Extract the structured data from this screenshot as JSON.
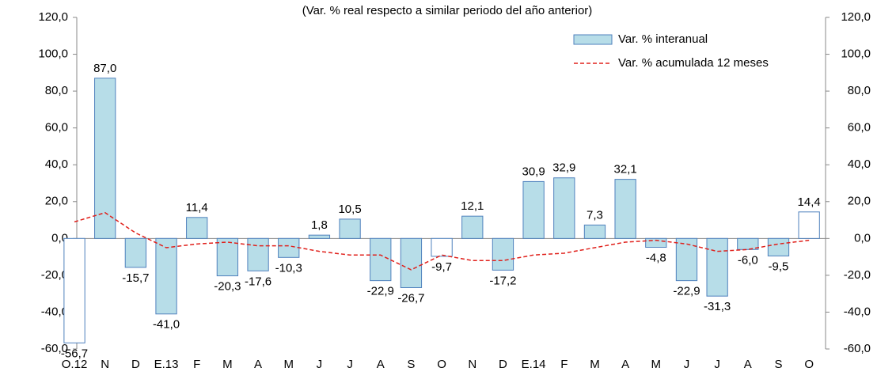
{
  "chart_data": {
    "type": "bar",
    "subtitle": "(Var. % real respecto a similar periodo del año anterior)",
    "categories": [
      "O.12",
      "N",
      "D",
      "E.13",
      "F",
      "M",
      "A",
      "M",
      "J",
      "J",
      "A",
      "S",
      "O",
      "N",
      "D",
      "E.14",
      "F",
      "M",
      "A",
      "M",
      "J",
      "J",
      "A",
      "S",
      "O"
    ],
    "series": [
      {
        "name": "Var. % interanual",
        "type": "bar",
        "color": "#b7dde8",
        "edge_color": "#4f81bd",
        "bar_colors": [
          "#ffffff",
          "#b7dde8",
          "#b7dde8",
          "#b7dde8",
          "#b7dde8",
          "#b7dde8",
          "#b7dde8",
          "#b7dde8",
          "#b7dde8",
          "#b7dde8",
          "#b7dde8",
          "#b7dde8",
          "#ffffff",
          "#b7dde8",
          "#b7dde8",
          "#b7dde8",
          "#b7dde8",
          "#b7dde8",
          "#b7dde8",
          "#b7dde8",
          "#b7dde8",
          "#b7dde8",
          "#b7dde8",
          "#b7dde8",
          "#ffffff"
        ],
        "values": [
          -56.7,
          87.0,
          -15.7,
          -41.0,
          11.4,
          -20.3,
          -17.6,
          -10.3,
          1.8,
          10.5,
          -22.9,
          -26.7,
          -9.7,
          12.1,
          -17.2,
          30.9,
          32.9,
          7.3,
          32.1,
          -4.8,
          -22.9,
          -31.3,
          -6.0,
          -9.5,
          14.4
        ],
        "value_labels": [
          "-56,7",
          "87,0",
          "-15,7",
          "-41,0",
          "11,4",
          "-20,3",
          "-17,6",
          "-10,3",
          "1,8",
          "10,5",
          "-22,9",
          "-26,7",
          "-9,7",
          "12,1",
          "-17,2",
          "30,9",
          "32,9",
          "7,3",
          "32,1",
          "-4,8",
          "-22,9",
          "-31,3",
          "-6,0",
          "-9,5",
          "14,4"
        ]
      },
      {
        "name": "Var. % acumulada 12 meses",
        "type": "line",
        "color": "#e0201b",
        "dashed": true,
        "values": [
          9,
          14,
          3,
          -5,
          -3,
          -2,
          -4,
          -4,
          -7,
          -9,
          -9,
          -17,
          -9,
          -12,
          -12,
          -9,
          -8,
          -5,
          -2,
          -1,
          -3,
          -7,
          -6,
          -3,
          -1
        ]
      }
    ],
    "ylim": [
      -60,
      120
    ],
    "yticks": [
      {
        "value": -60,
        "label": "-60,0"
      },
      {
        "value": -40,
        "label": "-40,0"
      },
      {
        "value": -20,
        "label": "-20,0"
      },
      {
        "value": 0,
        "label": "0,0"
      },
      {
        "value": 20,
        "label": "20,0"
      },
      {
        "value": 40,
        "label": "40,0"
      },
      {
        "value": 60,
        "label": "60,0"
      },
      {
        "value": 80,
        "label": "80,0"
      },
      {
        "value": 100,
        "label": "100,0"
      },
      {
        "value": 120,
        "label": "120,0"
      }
    ],
    "y2lim": [
      -60,
      120
    ],
    "y2ticks": [
      {
        "value": -60,
        "label": "-60,0"
      },
      {
        "value": -40,
        "label": "-40,0"
      },
      {
        "value": -20,
        "label": "-20,0"
      },
      {
        "value": 0,
        "label": "0,0"
      },
      {
        "value": 20,
        "label": "20,0"
      },
      {
        "value": 40,
        "label": "40,0"
      },
      {
        "value": 60,
        "label": "60,0"
      },
      {
        "value": 80,
        "label": "80,0"
      },
      {
        "value": 100,
        "label": "100,0"
      },
      {
        "value": 120,
        "label": "120,0"
      }
    ],
    "legend": "top-right"
  }
}
